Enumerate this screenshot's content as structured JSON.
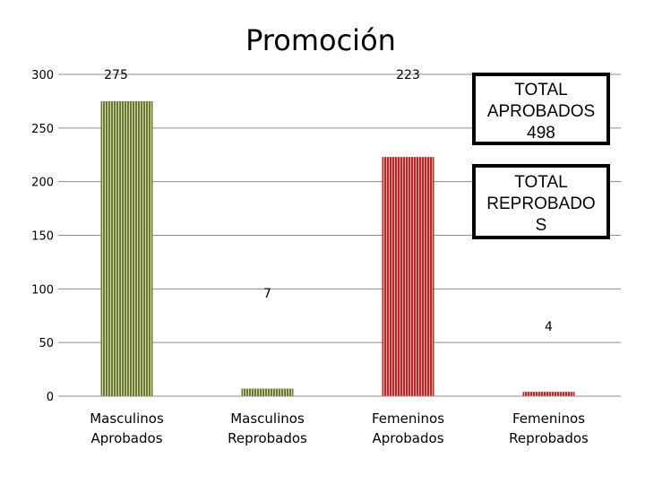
{
  "chart_data": {
    "type": "bar",
    "title": "Promoción",
    "categories": [
      "Masculinos Aprobados",
      "Masculinos Reprobados",
      "Femeninos Aprobados",
      "Femeninos Reprobados"
    ],
    "category_lines": [
      [
        "Masculinos",
        "Aprobados"
      ],
      [
        "Masculinos",
        "Reprobados"
      ],
      [
        "Femeninos",
        "Aprobados"
      ],
      [
        "Femeninos",
        "Reprobados"
      ]
    ],
    "values": [
      275,
      7,
      223,
      4
    ],
    "data_labels": [
      "275",
      "7",
      "223",
      "4"
    ],
    "colors": [
      "#6b7d2a",
      "#6b7d2a",
      "#cc1f1f",
      "#cc1f1f"
    ],
    "ylim": [
      0,
      300
    ],
    "yticks": [
      0,
      50,
      100,
      150,
      200,
      250,
      300
    ],
    "grid": true,
    "xlabel": "",
    "ylabel": ""
  },
  "annotations": {
    "approved_box": [
      "TOTAL",
      "APROBADOS",
      "498"
    ],
    "failed_box": [
      "TOTAL",
      "REPROBADO",
      "S"
    ]
  }
}
